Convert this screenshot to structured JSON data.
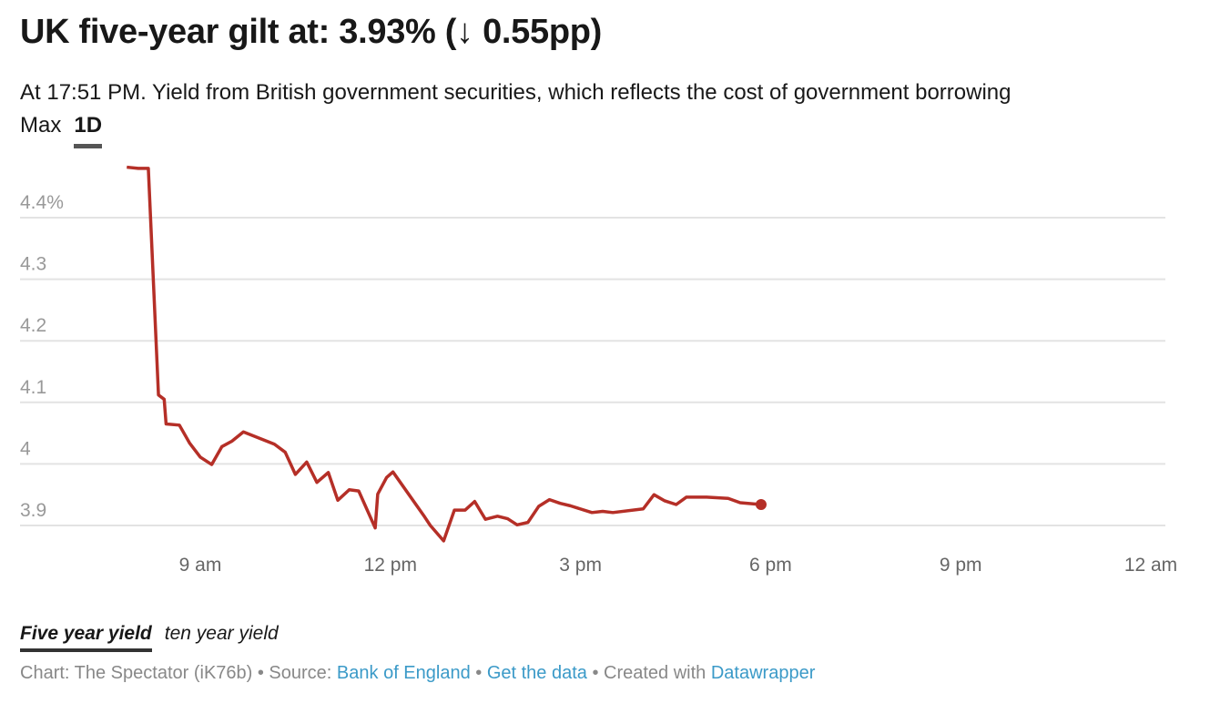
{
  "header": {
    "title": "UK five-year gilt at: 3.93% (↓ 0.55pp)",
    "subtitle": "At 17:51 PM. Yield from British government securities, which reflects the cost of government borrowing",
    "tabs": [
      {
        "label": "Max",
        "active": false
      },
      {
        "label": "1D",
        "active": true
      }
    ]
  },
  "legend": [
    {
      "label": "Five year yield",
      "active": true
    },
    {
      "label": "ten year yield",
      "active": false
    }
  ],
  "footer": {
    "chart_prefix": "Chart: The Spectator (iK76b) • Source: ",
    "source_link": "Bank of England",
    "sep1": " • ",
    "data_link": "Get the data",
    "sep2": " • Created with ",
    "tool_link": "Datawrapper"
  },
  "colors": {
    "line": "#b52f27",
    "grid": "#e3e3e3",
    "axis_text": "#999999",
    "link": "#3b9ac8"
  },
  "chart_data": {
    "type": "line",
    "title": "UK five-year gilt at: 3.93% (↓ 0.55pp)",
    "xlabel": "",
    "ylabel": "",
    "x_unit": "hour of day",
    "xlim": [
      6,
      24
    ],
    "ylim": [
      3.85,
      4.5
    ],
    "x_ticks": [
      {
        "value": 9,
        "label": "9 am"
      },
      {
        "value": 12,
        "label": "12 pm"
      },
      {
        "value": 15,
        "label": "3 pm"
      },
      {
        "value": 18,
        "label": "6 pm"
      },
      {
        "value": 21,
        "label": "9 pm"
      },
      {
        "value": 24,
        "label": "12 am"
      }
    ],
    "y_ticks": [
      {
        "value": 4.4,
        "label": "4.4%"
      },
      {
        "value": 4.3,
        "label": "4.3"
      },
      {
        "value": 4.2,
        "label": "4.2"
      },
      {
        "value": 4.1,
        "label": "4.1"
      },
      {
        "value": 4.0,
        "label": "4"
      },
      {
        "value": 3.9,
        "label": "3.9"
      }
    ],
    "grid": true,
    "series": [
      {
        "name": "Five year yield",
        "points": [
          [
            7.84,
            4.482
          ],
          [
            8.02,
            4.48
          ],
          [
            8.18,
            4.48
          ],
          [
            8.34,
            4.112
          ],
          [
            8.43,
            4.105
          ],
          [
            8.46,
            4.065
          ],
          [
            8.67,
            4.063
          ],
          [
            8.83,
            4.034
          ],
          [
            9.0,
            4.011
          ],
          [
            9.18,
            3.999
          ],
          [
            9.34,
            4.028
          ],
          [
            9.5,
            4.037
          ],
          [
            9.68,
            4.052
          ],
          [
            10.17,
            4.032
          ],
          [
            10.34,
            4.019
          ],
          [
            10.5,
            3.983
          ],
          [
            10.68,
            4.003
          ],
          [
            10.84,
            3.97
          ],
          [
            11.02,
            3.986
          ],
          [
            11.17,
            3.941
          ],
          [
            11.35,
            3.958
          ],
          [
            11.5,
            3.956
          ],
          [
            11.76,
            3.896
          ],
          [
            11.8,
            3.951
          ],
          [
            11.94,
            3.978
          ],
          [
            12.04,
            3.987
          ],
          [
            12.54,
            3.914
          ],
          [
            12.63,
            3.9
          ],
          [
            12.84,
            3.875
          ],
          [
            13.01,
            3.925
          ],
          [
            13.18,
            3.925
          ],
          [
            13.33,
            3.939
          ],
          [
            13.5,
            3.91
          ],
          [
            13.69,
            3.915
          ],
          [
            13.85,
            3.911
          ],
          [
            14.0,
            3.901
          ],
          [
            14.17,
            3.905
          ],
          [
            14.34,
            3.931
          ],
          [
            14.51,
            3.942
          ],
          [
            14.68,
            3.936
          ],
          [
            14.84,
            3.932
          ],
          [
            15.18,
            3.921
          ],
          [
            15.35,
            3.923
          ],
          [
            15.51,
            3.921
          ],
          [
            15.99,
            3.927
          ],
          [
            16.16,
            3.95
          ],
          [
            16.33,
            3.94
          ],
          [
            16.51,
            3.934
          ],
          [
            16.67,
            3.946
          ],
          [
            16.99,
            3.946
          ],
          [
            17.33,
            3.944
          ],
          [
            17.52,
            3.937
          ],
          [
            17.85,
            3.934
          ]
        ]
      }
    ]
  }
}
